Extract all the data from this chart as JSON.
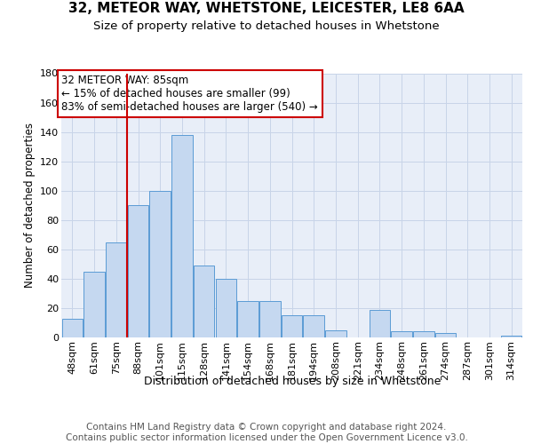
{
  "title1": "32, METEOR WAY, WHETSTONE, LEICESTER, LE8 6AA",
  "title2": "Size of property relative to detached houses in Whetstone",
  "xlabel": "Distribution of detached houses by size in Whetstone",
  "ylabel": "Number of detached properties",
  "categories": [
    "48sqm",
    "61sqm",
    "75sqm",
    "88sqm",
    "101sqm",
    "115sqm",
    "128sqm",
    "141sqm",
    "154sqm",
    "168sqm",
    "181sqm",
    "194sqm",
    "208sqm",
    "221sqm",
    "234sqm",
    "248sqm",
    "261sqm",
    "274sqm",
    "287sqm",
    "301sqm",
    "314sqm"
  ],
  "values": [
    13,
    45,
    65,
    90,
    100,
    138,
    49,
    40,
    25,
    25,
    15,
    15,
    5,
    0,
    19,
    4,
    4,
    3,
    0,
    0,
    1
  ],
  "bar_color": "#c5d8f0",
  "bar_edge_color": "#5b9bd5",
  "vline_x": 2.5,
  "vline_color": "#cc0000",
  "annotation_line1": "32 METEOR WAY: 85sqm",
  "annotation_line2": "← 15% of detached houses are smaller (99)",
  "annotation_line3": "83% of semi-detached houses are larger (540) →",
  "annotation_box_color": "white",
  "annotation_box_edge_color": "#cc0000",
  "ylim": [
    0,
    180
  ],
  "yticks": [
    0,
    20,
    40,
    60,
    80,
    100,
    120,
    140,
    160,
    180
  ],
  "grid_color": "#c8d4e8",
  "background_color": "#e8eef8",
  "footer": "Contains HM Land Registry data © Crown copyright and database right 2024.\nContains public sector information licensed under the Open Government Licence v3.0.",
  "title1_fontsize": 11,
  "title2_fontsize": 9.5,
  "xlabel_fontsize": 9,
  "ylabel_fontsize": 8.5,
  "tick_fontsize": 8,
  "footer_fontsize": 7.5,
  "annotation_fontsize": 8.5
}
